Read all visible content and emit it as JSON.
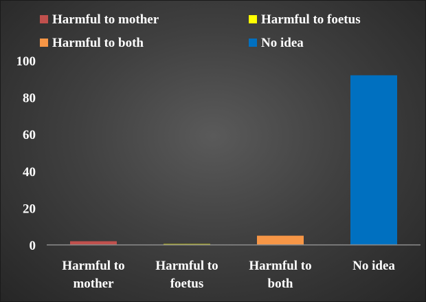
{
  "chart_data": {
    "type": "bar",
    "title": "",
    "xlabel": "",
    "ylabel": "",
    "ylim": [
      0,
      100
    ],
    "yticks": [
      0,
      20,
      40,
      60,
      80,
      100
    ],
    "grid": false,
    "legend_position": "top",
    "categories": [
      {
        "line1": "Harmful to",
        "line2": "mother",
        "full": "Harmful to mother"
      },
      {
        "line1": "Harmful to",
        "line2": "foetus",
        "full": "Harmful to foetus"
      },
      {
        "line1": "Harmful to",
        "line2": "both",
        "full": "Harmful to both"
      },
      {
        "line1": "No idea",
        "line2": "",
        "full": "No idea"
      }
    ],
    "values": [
      2,
      0.5,
      5,
      92
    ],
    "colors": [
      "#c0504d",
      "#ffff00",
      "#f79646",
      "#0070c0"
    ],
    "legend": [
      {
        "label": "Harmful to mother",
        "color": "#c0504d"
      },
      {
        "label": "Harmful to foetus",
        "color": "#ffff00"
      },
      {
        "label": "Harmful to both",
        "color": "#f79646"
      },
      {
        "label": "No idea",
        "color": "#0070c0"
      }
    ]
  }
}
